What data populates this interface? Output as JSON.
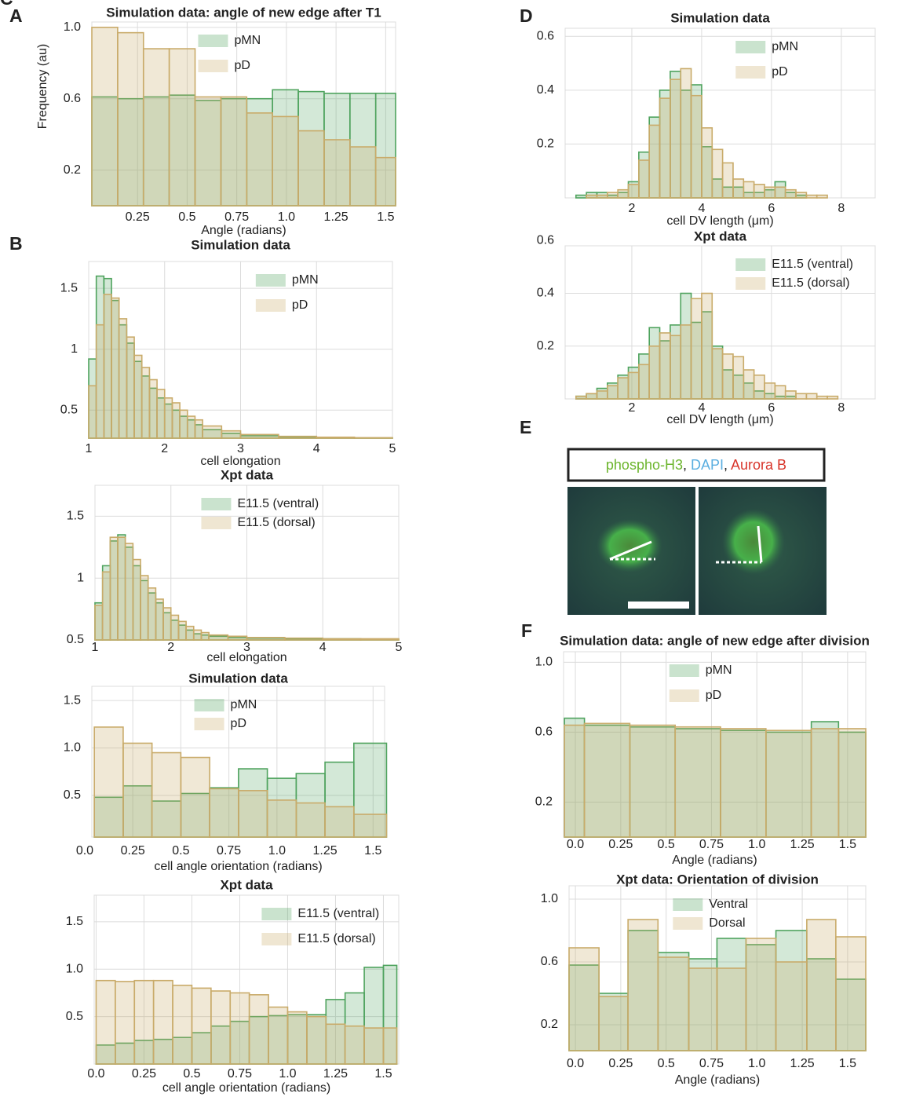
{
  "chart_data": [
    {
      "type": "histogram",
      "panel": "A",
      "title": "Simulation data: angle of new edge after T1",
      "xlabel": "Angle (radians)",
      "ylabel": "Frequency (au)",
      "bins": [
        0.02,
        0.15,
        0.28,
        0.41,
        0.54,
        0.67,
        0.8,
        0.93,
        1.06,
        1.19,
        1.32,
        1.45,
        1.55
      ],
      "series": [
        {
          "name": "pMN",
          "color": "#4fa35e",
          "values": [
            0.61,
            0.6,
            0.61,
            0.62,
            0.59,
            0.6,
            0.6,
            0.65,
            0.64,
            0.63,
            0.63,
            0.63
          ]
        },
        {
          "name": "pD",
          "color": "#c9ab6a",
          "values": [
            1.0,
            0.97,
            0.88,
            0.88,
            0.61,
            0.61,
            0.52,
            0.5,
            0.42,
            0.37,
            0.33,
            0.27
          ]
        }
      ],
      "xlim": [
        0.02,
        1.55
      ],
      "xticks": [
        0.25,
        0.5,
        0.75,
        {
          "value": 1,
          "label": "1.0"
        },
        1.25,
        1.5
      ],
      "ylim": [
        0,
        1.03
      ],
      "yticks": [
        {
          "value": 1,
          "label": "1.0"
        },
        0.6,
        0.2
      ],
      "grid": true,
      "legend": "upper center"
    },
    {
      "type": "histogram",
      "panel": "B",
      "title": "Simulation data",
      "xlabel": "cell elongation",
      "bins": [
        1.0,
        1.1,
        1.2,
        1.3,
        1.4,
        1.5,
        1.6,
        1.7,
        1.8,
        1.9,
        2.0,
        2.1,
        2.2,
        2.3,
        2.4,
        2.5,
        2.75,
        3.0,
        3.5,
        4.0,
        4.5,
        5.0
      ],
      "series": [
        {
          "name": "pMN",
          "color": "#4fa35e",
          "values": [
            0.92,
            1.6,
            1.58,
            1.4,
            1.2,
            1.05,
            0.9,
            0.78,
            0.68,
            0.6,
            0.55,
            0.5,
            0.45,
            0.42,
            0.38,
            0.34,
            0.31,
            0.29,
            0.28,
            0.275,
            0.272
          ]
        },
        {
          "name": "pD",
          "color": "#c9ab6a",
          "values": [
            0.7,
            1.2,
            1.45,
            1.42,
            1.25,
            1.1,
            0.95,
            0.85,
            0.75,
            0.67,
            0.6,
            0.56,
            0.5,
            0.45,
            0.42,
            0.37,
            0.33,
            0.3,
            0.285,
            0.278,
            0.274
          ]
        }
      ],
      "xlim": [
        1,
        5
      ],
      "xticks": [
        1,
        2,
        3,
        4,
        5
      ],
      "ylim": [
        0.27,
        1.72
      ],
      "yticks": [
        1.5,
        1,
        0.5
      ],
      "grid": true,
      "legend": "upper right"
    },
    {
      "type": "histogram",
      "title": "Xpt data",
      "xlabel": "cell elongation",
      "bins": [
        1.0,
        1.1,
        1.2,
        1.3,
        1.4,
        1.5,
        1.6,
        1.7,
        1.8,
        1.9,
        2.0,
        2.1,
        2.2,
        2.3,
        2.4,
        2.5,
        2.75,
        3.0,
        3.5,
        4.0,
        4.5,
        5.0
      ],
      "series": [
        {
          "name": "E11.5 (ventral)",
          "color": "#4fa35e",
          "values": [
            0.8,
            1.1,
            1.3,
            1.35,
            1.25,
            1.1,
            0.98,
            0.88,
            0.8,
            0.72,
            0.66,
            0.62,
            0.58,
            0.55,
            0.54,
            0.53,
            0.52,
            0.515,
            0.51,
            0.51,
            0.505
          ]
        },
        {
          "name": "E11.5 (dorsal)",
          "color": "#c9ab6a",
          "values": [
            0.78,
            1.05,
            1.33,
            1.33,
            1.28,
            1.15,
            1.02,
            0.92,
            0.83,
            0.76,
            0.7,
            0.65,
            0.61,
            0.58,
            0.56,
            0.54,
            0.53,
            0.52,
            0.515,
            0.51,
            0.51
          ]
        }
      ],
      "xlim": [
        1,
        5
      ],
      "xticks": [
        1,
        2,
        3,
        4,
        5
      ],
      "ylim": [
        0.5,
        1.75
      ],
      "yticks": [
        1.5,
        1,
        0.5
      ],
      "grid": true,
      "legend": "upper center"
    },
    {
      "type": "histogram",
      "panel": "C",
      "title": "Simulation data",
      "xlabel": "cell angle orientation (radians)",
      "bins": [
        0.05,
        0.2,
        0.35,
        0.5,
        0.65,
        0.8,
        0.95,
        1.1,
        1.25,
        1.4,
        1.57
      ],
      "series": [
        {
          "name": "pMN",
          "color": "#4fa35e",
          "values": [
            0.48,
            0.6,
            0.44,
            0.52,
            0.58,
            0.78,
            0.68,
            0.73,
            0.85,
            1.05
          ]
        },
        {
          "name": "pD",
          "color": "#c9ab6a",
          "values": [
            1.22,
            1.05,
            0.95,
            0.9,
            0.57,
            0.55,
            0.45,
            0.42,
            0.38,
            0.3
          ]
        }
      ],
      "xlim": [
        0.037,
        1.56
      ],
      "xticks": [
        {
          "value": 0,
          "label": "0.0"
        },
        0.25,
        0.5,
        0.75,
        {
          "value": 1,
          "label": "1.0"
        },
        1.25,
        1.5
      ],
      "ylim": [
        0.06,
        1.65
      ],
      "yticks": [
        1.5,
        {
          "value": 1,
          "label": "1.0"
        },
        0.5
      ],
      "grid": true,
      "legend": "upper center"
    },
    {
      "type": "histogram",
      "title": "Xpt data",
      "xlabel": "cell angle orientation (radians)",
      "bins": [
        0,
        0.1,
        0.2,
        0.3,
        0.4,
        0.5,
        0.6,
        0.7,
        0.8,
        0.9,
        1.0,
        1.1,
        1.2,
        1.3,
        1.4,
        1.5,
        1.57
      ],
      "series": [
        {
          "name": "E11.5 (ventral)",
          "color": "#4fa35e",
          "values": [
            0.2,
            0.22,
            0.25,
            0.26,
            0.28,
            0.33,
            0.4,
            0.45,
            0.5,
            0.51,
            0.52,
            0.52,
            0.68,
            0.75,
            1.02,
            1.04
          ]
        },
        {
          "name": "E11.5 (dorsal)",
          "color": "#c9ab6a",
          "values": [
            0.88,
            0.87,
            0.88,
            0.88,
            0.83,
            0.8,
            0.77,
            0.75,
            0.73,
            0.6,
            0.55,
            0.5,
            0.42,
            0.4,
            0.38,
            0.38
          ]
        }
      ],
      "xlim": [
        -0.01,
        1.58
      ],
      "xticks": [
        {
          "value": 0,
          "label": "0.0"
        },
        0.25,
        0.5,
        0.75,
        {
          "value": 1,
          "label": "1.0"
        },
        1.25,
        1.5
      ],
      "ylim": [
        0,
        1.78
      ],
      "yticks": [
        1.5,
        {
          "value": 1,
          "label": "1.0"
        },
        0.5
      ],
      "grid": true,
      "legend": "upper right"
    },
    {
      "type": "histogram",
      "panel": "D",
      "title": "Simulation data",
      "xlabel": "cell DV length (μm)",
      "bins": [
        0.4,
        0.7,
        1.0,
        1.3,
        1.6,
        1.9,
        2.2,
        2.5,
        2.8,
        3.1,
        3.4,
        3.7,
        4.0,
        4.3,
        4.6,
        4.9,
        5.2,
        5.5,
        5.8,
        6.1,
        6.4,
        6.7,
        7.0,
        7.3,
        7.6,
        7.9
      ],
      "series": [
        {
          "name": "pMN",
          "color": "#4fa35e",
          "values": [
            0.01,
            0.02,
            0.02,
            0.01,
            0.02,
            0.06,
            0.17,
            0.3,
            0.4,
            0.47,
            0.4,
            0.42,
            0.19,
            0.07,
            0.04,
            0.04,
            0.02,
            0.02,
            0.03,
            0.06,
            0.02,
            0.01,
            0,
            0,
            0
          ]
        },
        {
          "name": "pD",
          "color": "#c9ab6a",
          "values": [
            0,
            0.01,
            0.01,
            0.02,
            0.03,
            0.05,
            0.14,
            0.27,
            0.37,
            0.44,
            0.48,
            0.38,
            0.26,
            0.18,
            0.13,
            0.07,
            0.06,
            0.05,
            0.04,
            0.04,
            0.03,
            0.02,
            0.01,
            0.01,
            0
          ]
        }
      ],
      "xlim": [
        0.09,
        8.97
      ],
      "xticks": [
        2,
        4,
        6,
        8
      ],
      "ylim": [
        0,
        0.63
      ],
      "yticks": [
        0.6,
        0.4,
        0.2
      ],
      "grid": true,
      "legend": "upper right"
    },
    {
      "type": "histogram",
      "title": "Xpt data",
      "xlabel": "cell DV length (μm)",
      "bins": [
        0.4,
        0.7,
        1.0,
        1.3,
        1.6,
        1.9,
        2.2,
        2.5,
        2.8,
        3.1,
        3.4,
        3.7,
        4.0,
        4.3,
        4.6,
        4.9,
        5.2,
        5.5,
        5.8,
        6.1,
        6.4,
        6.7,
        7.0,
        7.3,
        7.6,
        7.9
      ],
      "series": [
        {
          "name": "E11.5 (ventral)",
          "color": "#4fa35e",
          "values": [
            0.01,
            0.02,
            0.04,
            0.06,
            0.09,
            0.12,
            0.17,
            0.27,
            0.22,
            0.28,
            0.4,
            0.29,
            0.33,
            0.2,
            0.11,
            0.09,
            0.06,
            0.03,
            0.02,
            0.01,
            0.01,
            0,
            0,
            0,
            0
          ]
        },
        {
          "name": "E11.5 (dorsal)",
          "color": "#c9ab6a",
          "values": [
            0.01,
            0.02,
            0.03,
            0.05,
            0.08,
            0.1,
            0.13,
            0.2,
            0.25,
            0.24,
            0.28,
            0.38,
            0.4,
            0.19,
            0.17,
            0.16,
            0.11,
            0.09,
            0.06,
            0.05,
            0.03,
            0.02,
            0.02,
            0.01,
            0.01
          ]
        }
      ],
      "xlim": [
        0.09,
        8.97
      ],
      "xticks": [
        2,
        4,
        6,
        8
      ],
      "ylim": [
        0,
        0.58
      ],
      "yticks": [
        0.6,
        0.4,
        0.2
      ],
      "grid": true,
      "legend": "upper right"
    },
    {
      "type": "histogram",
      "panel": "F",
      "title": "Simulation data: angle of new edge after division",
      "xlabel": "Angle (radians)",
      "bins": [
        -0.06,
        0.05,
        0.3,
        0.55,
        0.8,
        1.05,
        1.3,
        1.45,
        1.6
      ],
      "series": [
        {
          "name": "pMN",
          "color": "#4fa35e",
          "values": [
            0.68,
            0.64,
            0.63,
            0.62,
            0.61,
            0.6,
            0.66,
            0.6
          ]
        },
        {
          "name": "pD",
          "color": "#c9ab6a",
          "values": [
            0.64,
            0.65,
            0.64,
            0.63,
            0.62,
            0.61,
            0.62,
            0.62
          ]
        }
      ],
      "xlim": [
        -0.065,
        1.6
      ],
      "xticks": [
        {
          "value": 0,
          "label": "0.0"
        },
        0.25,
        0.5,
        0.75,
        {
          "value": 1,
          "label": "1.0"
        },
        1.25,
        1.5
      ],
      "ylim": [
        0,
        1.06
      ],
      "yticks": [
        {
          "value": 1,
          "label": "1.0"
        },
        0.6,
        0.2
      ],
      "grid": true,
      "legend": "upper center"
    },
    {
      "type": "histogram",
      "title": "Xpt data: Orientation of division",
      "xlabel": "Angle (radians)",
      "bins": [
        -0.035,
        0.13,
        0.29,
        0.455,
        0.625,
        0.78,
        0.94,
        1.105,
        1.275,
        1.435,
        1.6
      ],
      "series": [
        {
          "name": "Ventral",
          "color": "#4fa35e",
          "values": [
            0.58,
            0.4,
            0.8,
            0.66,
            0.62,
            0.75,
            0.71,
            0.8,
            0.62,
            0.49
          ]
        },
        {
          "name": "Dorsal",
          "color": "#c9ab6a",
          "values": [
            0.69,
            0.38,
            0.87,
            0.63,
            0.56,
            0.56,
            0.75,
            0.6,
            0.87,
            0.76
          ]
        }
      ],
      "xlim": [
        -0.035,
        1.6
      ],
      "xticks": [
        {
          "value": 0,
          "label": "0.0"
        },
        0.25,
        0.5,
        0.75,
        {
          "value": 1,
          "label": "1.0"
        },
        1.25,
        1.5
      ],
      "ylim": [
        0.035,
        1.085
      ],
      "yticks": [
        {
          "value": 1,
          "label": "1.0"
        },
        0.6,
        0.2
      ],
      "grid": true,
      "legend": "upper center"
    }
  ],
  "image_panel": {
    "panel": "E",
    "legend": [
      {
        "text": "phospho-H3",
        "color": "#6cb52d"
      },
      {
        "text": ", ",
        "color": "#222222"
      },
      {
        "text": "DAPI",
        "color": "#5aaee0"
      },
      {
        "text": ", ",
        "color": "#222222"
      },
      {
        "text": "Aurora B",
        "color": "#d8342a"
      }
    ]
  }
}
